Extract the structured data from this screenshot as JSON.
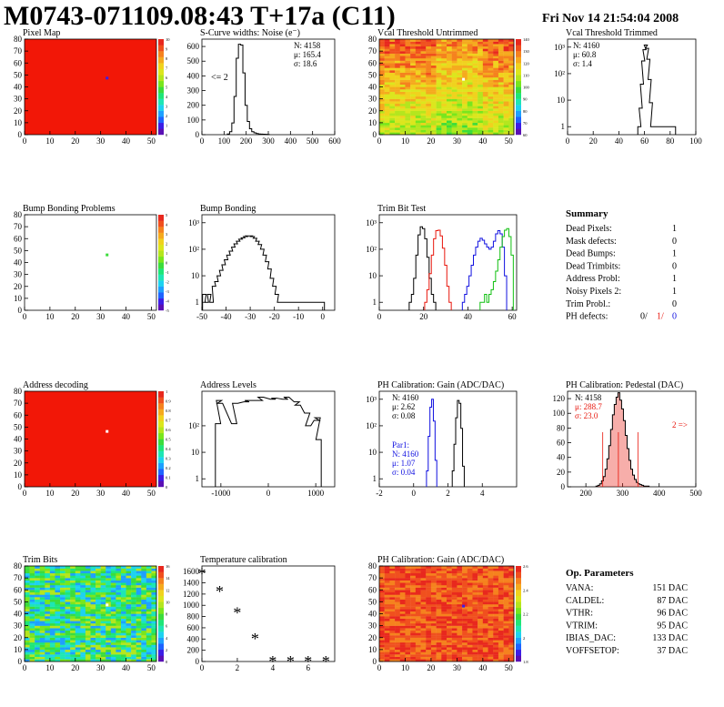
{
  "header": {
    "title": "M0743-071109.08:43 T+17a (C11)",
    "date": "Fri Nov 14 21:54:04 2008"
  },
  "colors": {
    "line": "#000000",
    "red": "#e8160c",
    "blue": "#1010e0",
    "green": "#10c010",
    "map_red": "#f21707",
    "palette": [
      "#5a10b4",
      "#3c1ee6",
      "#1e64ff",
      "#1ea0ff",
      "#1ed2f0",
      "#1ee6b4",
      "#1ee678",
      "#3cdc3c",
      "#78e61e",
      "#b4e61e",
      "#dce61e",
      "#f0d21e",
      "#f5aa1e",
      "#f5821e",
      "#f0501e",
      "#e8281e"
    ]
  },
  "chart_data": [
    {
      "id": "pixel-map",
      "type": "heatmap",
      "title": "Pixel Map",
      "xlim": [
        0,
        52
      ],
      "ylim": [
        0,
        80
      ],
      "xticks": [
        "0",
        "10",
        "20",
        "30",
        "40",
        "50"
      ],
      "yticks": [
        "0",
        "10",
        "20",
        "30",
        "40",
        "50",
        "60",
        "70",
        "80"
      ],
      "zticks": [
        "0",
        "1",
        "2",
        "3",
        "4",
        "5",
        "6",
        "7",
        "8",
        "9",
        "10"
      ],
      "fill": "uniform-max",
      "special_pixels": [
        {
          "x": 32,
          "y": 47,
          "color": "#3c1ee6"
        }
      ]
    },
    {
      "id": "scurve-widths",
      "type": "histogram",
      "title": "S-Curve widths: Noise (e⁻)",
      "xlim": [
        0,
        600
      ],
      "ylim": [
        0,
        650
      ],
      "xticks": [
        "0",
        "100",
        "200",
        "300",
        "400",
        "500",
        "600"
      ],
      "yticks": [
        "0",
        "100",
        "200",
        "300",
        "400",
        "500",
        "600"
      ],
      "stats": [
        "N: 4158",
        "μ: 165.4",
        "σ: 18.6"
      ],
      "annotation": "<= 2",
      "series": [
        {
          "color": "black",
          "x": [
            120,
            130,
            140,
            150,
            160,
            170,
            180,
            190,
            200,
            210,
            220,
            230,
            240,
            250,
            260,
            270,
            280,
            290,
            300
          ],
          "values": [
            5,
            20,
            80,
            260,
            520,
            615,
            610,
            420,
            200,
            90,
            40,
            20,
            12,
            8,
            5,
            4,
            3,
            2,
            1
          ]
        }
      ]
    },
    {
      "id": "vcal-untrimmed",
      "type": "heatmap",
      "title": "Vcal Threshold Untrimmed",
      "xlim": [
        0,
        52
      ],
      "ylim": [
        0,
        80
      ],
      "xticks": [
        "0",
        "10",
        "20",
        "30",
        "40",
        "50"
      ],
      "yticks": [
        "0",
        "10",
        "20",
        "30",
        "40",
        "50",
        "60",
        "70",
        "80"
      ],
      "zticks": [
        "60",
        "70",
        "80",
        "90",
        "100",
        "110",
        "120",
        "130",
        "140"
      ],
      "fill": "gradient-top-orange-bottom-green",
      "special_pixels": [
        {
          "x": 32,
          "y": 46,
          "color": "#ffffff"
        }
      ]
    },
    {
      "id": "vcal-trimmed",
      "type": "histogram",
      "title": "Vcal Threshold Trimmed",
      "xlim": [
        0,
        100
      ],
      "ylim": [
        0.5,
        2000
      ],
      "log_y": true,
      "xticks": [
        "0",
        "20",
        "40",
        "60",
        "80",
        "100"
      ],
      "yticks": [
        "1",
        "10",
        "10²",
        "10³"
      ],
      "stats": [
        "N: 4160",
        "μ: 60.8",
        "σ: 1.4"
      ],
      "series": [
        {
          "color": "black",
          "x": [
            56,
            57,
            58,
            59,
            60,
            61,
            62,
            63,
            64,
            65,
            66,
            83
          ],
          "values": [
            1,
            5,
            40,
            300,
            800,
            1200,
            900,
            350,
            60,
            8,
            1,
            1
          ]
        }
      ]
    },
    {
      "id": "bump-problems",
      "type": "heatmap",
      "title": "Bump Bonding Problems",
      "xlim": [
        0,
        52
      ],
      "ylim": [
        0,
        80
      ],
      "xticks": [
        "0",
        "10",
        "20",
        "30",
        "40",
        "50"
      ],
      "yticks": [
        "0",
        "10",
        "20",
        "30",
        "40",
        "50",
        "60",
        "70",
        "80"
      ],
      "zticks": [
        "-5",
        "-4",
        "-3",
        "-2",
        "-1",
        "0",
        "1",
        "2",
        "3",
        "4",
        "5"
      ],
      "fill": "empty",
      "special_pixels": [
        {
          "x": 32,
          "y": 46,
          "color": "#3cdc3c"
        }
      ]
    },
    {
      "id": "bump-bonding",
      "type": "histogram",
      "title": "Bump Bonding",
      "xlim": [
        -50,
        5
      ],
      "ylim": [
        0.5,
        2000
      ],
      "log_y": true,
      "xticks": [
        "-50",
        "-40",
        "-30",
        "-20",
        "-10",
        "0"
      ],
      "yticks": [
        "1",
        "10",
        "10²",
        "10³"
      ],
      "series": [
        {
          "color": "black",
          "x": [
            -49,
            -48,
            -47,
            -46,
            -45,
            -44,
            -43,
            -42,
            -41,
            -40,
            -39,
            -38,
            -37,
            -36,
            -35,
            -34,
            -33,
            -32,
            -31,
            -30,
            -29,
            -28,
            -27,
            -26,
            -25,
            -24,
            -23,
            -22,
            -21,
            -20,
            -19,
            -18,
            -17,
            0
          ],
          "values": [
            2,
            1,
            2,
            1,
            4,
            6,
            10,
            16,
            26,
            40,
            60,
            85,
            120,
            160,
            200,
            240,
            270,
            300,
            320,
            320,
            300,
            260,
            200,
            150,
            100,
            60,
            34,
            18,
            8,
            4,
            2,
            1,
            1,
            1
          ]
        }
      ]
    },
    {
      "id": "trim-bit-test",
      "type": "histogram",
      "title": "Trim Bit Test",
      "xlim": [
        0,
        62
      ],
      "ylim": [
        0.5,
        2000
      ],
      "log_y": true,
      "xticks": [
        "0",
        "20",
        "40",
        "60"
      ],
      "yticks": [
        "1",
        "10",
        "10²",
        "10³"
      ],
      "series": [
        {
          "color": "black",
          "x": [
            14,
            15,
            16,
            17,
            18,
            19,
            20,
            21,
            22,
            23,
            24,
            25
          ],
          "values": [
            1,
            2,
            8,
            60,
            350,
            700,
            600,
            250,
            50,
            8,
            2,
            1
          ]
        },
        {
          "color": "red",
          "x": [
            21,
            22,
            23,
            24,
            25,
            26,
            27,
            28,
            29,
            30,
            31,
            32
          ],
          "values": [
            1,
            3,
            12,
            60,
            250,
            500,
            520,
            320,
            110,
            25,
            4,
            1
          ]
        },
        {
          "color": "blue",
          "x": [
            38,
            39,
            40,
            41,
            42,
            43,
            44,
            45,
            46,
            47,
            48,
            49,
            50,
            51,
            52,
            53,
            54,
            55,
            56,
            57
          ],
          "values": [
            1,
            2,
            4,
            10,
            25,
            60,
            120,
            200,
            260,
            220,
            160,
            120,
            100,
            120,
            200,
            380,
            500,
            380,
            120,
            10
          ]
        },
        {
          "color": "green",
          "x": [
            46,
            47,
            48,
            49,
            50,
            51,
            52,
            53,
            54,
            55,
            56,
            57,
            58,
            59,
            60
          ],
          "values": [
            1,
            1,
            2,
            1,
            2,
            3,
            6,
            15,
            40,
            120,
            300,
            520,
            600,
            300,
            60
          ]
        }
      ]
    },
    {
      "id": "summary",
      "type": "table",
      "title": "Summary",
      "rows": [
        {
          "label": "Dead Pixels:",
          "value": "1"
        },
        {
          "label": "Mask defects:",
          "value": "0"
        },
        {
          "label": "Dead Bumps:",
          "value": "1"
        },
        {
          "label": "Dead Trimbits:",
          "value": "0"
        },
        {
          "label": "Address Probl:",
          "value": "1"
        },
        {
          "label": "Noisy Pixels 2:",
          "value": "1"
        },
        {
          "label": "Trim Probl.:",
          "value": "0"
        }
      ],
      "ph_defects": {
        "label": "PH defects:",
        "v1": "0/",
        "v2": "1/",
        "v3": "0"
      }
    },
    {
      "id": "address-decoding",
      "type": "heatmap",
      "title": "Address decoding",
      "xlim": [
        0,
        52
      ],
      "ylim": [
        0,
        80
      ],
      "xticks": [
        "0",
        "10",
        "20",
        "30",
        "40",
        "50"
      ],
      "yticks": [
        "0",
        "10",
        "20",
        "30",
        "40",
        "50",
        "60",
        "70",
        "80"
      ],
      "zticks": [
        "0",
        "0.1",
        "0.2",
        "0.3",
        "0.4",
        "0.5",
        "0.6",
        "0.7",
        "0.8",
        "0.9",
        "1"
      ],
      "fill": "uniform-max",
      "special_pixels": [
        {
          "x": 32,
          "y": 46,
          "color": "#ffffff"
        }
      ]
    },
    {
      "id": "address-levels",
      "type": "histogram",
      "title": "Address Levels",
      "xlim": [
        -1400,
        1400
      ],
      "ylim": [
        0.5,
        2000
      ],
      "log_y": true,
      "xticks": [
        "-1000",
        "0",
        "1000"
      ],
      "yticks": [
        "1",
        "10",
        "10²"
      ],
      "series": [
        {
          "color": "black",
          "x": [
            -1060,
            -1040,
            -1020,
            -720,
            -700,
            -460,
            -440,
            -180,
            -160,
            100,
            120,
            360,
            380,
            600,
            620,
            820,
            840,
            1020,
            1040,
            1060
          ],
          "values": [
            120,
            900,
            700,
            120,
            700,
            800,
            900,
            900,
            1200,
            1000,
            1100,
            1000,
            1200,
            800,
            600,
            300,
            100,
            160,
            200,
            30
          ]
        }
      ]
    },
    {
      "id": "ph-gain",
      "type": "histogram",
      "title": "PH Calibration: Gain (ADC/DAC)",
      "xlim": [
        -2,
        6
      ],
      "ylim": [
        0.5,
        2000
      ],
      "log_y": true,
      "xticks": [
        "-2",
        "0",
        "2",
        "4"
      ],
      "yticks": [
        "1",
        "10",
        "10²",
        "10³"
      ],
      "stats": [
        "N: 4160",
        "μ: 2.62",
        "σ: 0.08"
      ],
      "stats2": [
        "Par1:",
        "N: 4160",
        "μ: 1.07",
        "σ: 0.04"
      ],
      "series": [
        {
          "color": "black",
          "x": [
            2.3,
            2.4,
            2.5,
            2.6,
            2.7,
            2.8,
            2.9
          ],
          "values": [
            2,
            20,
            200,
            900,
            700,
            80,
            3
          ]
        },
        {
          "color": "blue",
          "x": [
            0.8,
            0.9,
            1.0,
            1.1,
            1.2,
            1.3
          ],
          "values": [
            2,
            40,
            500,
            1000,
            150,
            5
          ]
        }
      ]
    },
    {
      "id": "ph-pedestal",
      "type": "histogram",
      "title": "PH Calibration: Pedestal (DAC)",
      "xlim": [
        150,
        500
      ],
      "ylim": [
        0,
        130
      ],
      "xticks": [
        "200",
        "300",
        "400",
        "500"
      ],
      "yticks": [
        "0",
        "20",
        "40",
        "60",
        "80",
        "100",
        "120"
      ],
      "stats": [
        "N: 4158"
      ],
      "stats_red": [
        "μ: 288.7",
        "σ: 23.0"
      ],
      "annotation": "2 =>",
      "series": [
        {
          "color": "black",
          "x": [
            230,
            235,
            240,
            245,
            250,
            255,
            260,
            265,
            270,
            275,
            280,
            285,
            290,
            295,
            300,
            305,
            310,
            315,
            320,
            325,
            330,
            335,
            340,
            345,
            350,
            355,
            360,
            365,
            370
          ],
          "values": [
            1,
            2,
            4,
            8,
            14,
            24,
            38,
            56,
            78,
            98,
            112,
            122,
            128,
            118,
            106,
            90,
            70,
            52,
            36,
            24,
            16,
            10,
            6,
            4,
            3,
            2,
            1,
            1,
            1
          ]
        }
      ]
    },
    {
      "id": "trim-bits",
      "type": "heatmap",
      "title": "Trim Bits",
      "xlim": [
        0,
        52
      ],
      "ylim": [
        0,
        80
      ],
      "xticks": [
        "0",
        "10",
        "20",
        "30",
        "40",
        "50"
      ],
      "yticks": [
        "0",
        "10",
        "20",
        "30",
        "40",
        "50",
        "60",
        "70",
        "80"
      ],
      "zticks": [
        "0",
        "2",
        "4",
        "6",
        "8",
        "10",
        "12",
        "14",
        "16"
      ],
      "fill": "random-green-mix",
      "special_pixels": [
        {
          "x": 32,
          "y": 47,
          "color": "#ffffff"
        }
      ]
    },
    {
      "id": "temperature-calibration",
      "type": "scatter",
      "title": "Temperature calibration",
      "xlim": [
        0,
        7.5
      ],
      "ylim": [
        0,
        1700
      ],
      "xticks": [
        "0",
        "2",
        "4",
        "6"
      ],
      "yticks": [
        "0",
        "200",
        "400",
        "600",
        "800",
        "1000",
        "1200",
        "1400",
        "1600"
      ],
      "x": [
        0,
        1,
        2,
        3,
        4,
        5,
        6,
        7
      ],
      "values": [
        1580,
        1260,
        880,
        420,
        20,
        15,
        20,
        15
      ]
    },
    {
      "id": "ph-gain-map",
      "type": "heatmap",
      "title": "PH Calibration: Gain (ADC/DAC)",
      "xlim": [
        0,
        52
      ],
      "ylim": [
        0,
        80
      ],
      "xticks": [
        "0",
        "10",
        "20",
        "30",
        "40",
        "50"
      ],
      "yticks": [
        "0",
        "10",
        "20",
        "30",
        "40",
        "50",
        "60",
        "70",
        "80"
      ],
      "zticks": [
        "1.8",
        "2",
        "2.2",
        "2.4",
        "2.6"
      ],
      "fill": "mostly-red",
      "special_pixels": [
        {
          "x": 32,
          "y": 46,
          "color": "#3c1ee6"
        }
      ]
    },
    {
      "id": "op-parameters",
      "type": "table",
      "title": "Op. Parameters",
      "rows": [
        {
          "label": "VANA:",
          "value": "151 DAC"
        },
        {
          "label": "CALDEL:",
          "value": "87 DAC"
        },
        {
          "label": "VTHR:",
          "value": "96 DAC"
        },
        {
          "label": "VTRIM:",
          "value": "95 DAC"
        },
        {
          "label": "IBIAS_DAC:",
          "value": "133 DAC"
        },
        {
          "label": "VOFFSETOP:",
          "value": "37 DAC"
        }
      ]
    }
  ]
}
